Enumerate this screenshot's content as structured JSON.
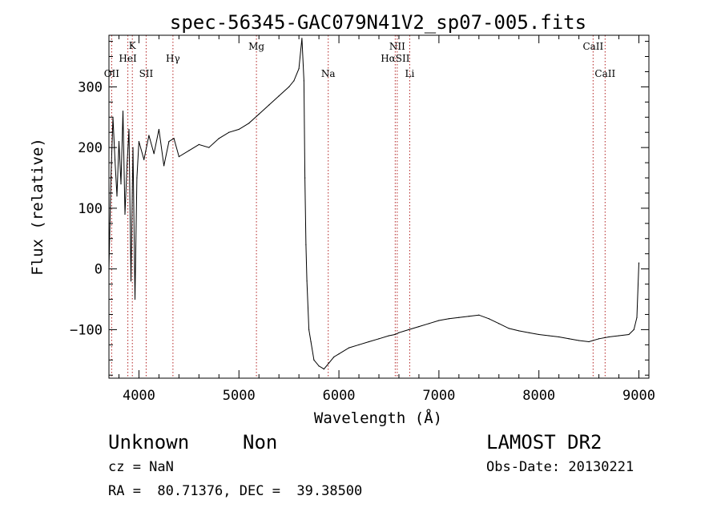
{
  "title": "spec-56345-GAC079N41V2_sp07-005.fits",
  "chart_data": {
    "type": "line",
    "xlabel": "Wavelength (Å)",
    "ylabel": "Flux (relative)",
    "xlim": [
      3700,
      9100
    ],
    "ylim": [
      -180,
      385
    ],
    "xticks": [
      4000,
      5000,
      6000,
      7000,
      8000,
      9000
    ],
    "yticks": [
      -100,
      0,
      100,
      200,
      300
    ],
    "series": [
      {
        "x": [
          3700,
          3720,
          3740,
          3760,
          3780,
          3800,
          3820,
          3840,
          3860,
          3880,
          3900,
          3920,
          3940,
          3960,
          3980,
          4000,
          4050,
          4100,
          4150,
          4200,
          4250,
          4300,
          4350,
          4400,
          4500,
          4600,
          4700,
          4800,
          4900,
          5000,
          5100,
          5200,
          5300,
          5400,
          5500,
          5550,
          5600,
          5630,
          5650,
          5660,
          5670,
          5680,
          5700,
          5720,
          5750,
          5800,
          5850,
          5900,
          5950,
          6000,
          6100,
          6200,
          6300,
          6400,
          6500,
          6560,
          6600,
          6700,
          6800,
          6900,
          7000,
          7100,
          7200,
          7300,
          7400,
          7500,
          7600,
          7700,
          7800,
          7900,
          8000,
          8100,
          8200,
          8300,
          8400,
          8500,
          8600,
          8700,
          8800,
          8900,
          8950,
          8980,
          9000
        ],
        "y": [
          0,
          150,
          250,
          180,
          120,
          210,
          140,
          260,
          90,
          170,
          230,
          -20,
          200,
          -50,
          150,
          210,
          180,
          220,
          190,
          230,
          170,
          210,
          215,
          185,
          195,
          205,
          200,
          215,
          225,
          230,
          240,
          255,
          270,
          285,
          300,
          310,
          330,
          380,
          310,
          150,
          40,
          -20,
          -100,
          -120,
          -150,
          -160,
          -165,
          -155,
          -145,
          -140,
          -130,
          -125,
          -120,
          -115,
          -110,
          -108,
          -105,
          -100,
          -95,
          -90,
          -85,
          -82,
          -80,
          -78,
          -76,
          -82,
          -90,
          -98,
          -102,
          -105,
          -108,
          -110,
          -112,
          -115,
          -118,
          -120,
          -115,
          -112,
          -110,
          -108,
          -100,
          -80,
          10
        ]
      }
    ],
    "line_labels": [
      {
        "text": "K",
        "x": 3934
      },
      {
        "text": "HeI",
        "x": 3889
      },
      {
        "text": "OII",
        "x": 3727
      },
      {
        "text": "SII",
        "x": 4072
      },
      {
        "text": "Hγ",
        "x": 4340
      },
      {
        "text": "Mg",
        "x": 5175
      },
      {
        "text": "Na",
        "x": 5893
      },
      {
        "text": "NII",
        "x": 6583
      },
      {
        "text": "HαSII",
        "x": 6563
      },
      {
        "text": "Li",
        "x": 6708
      },
      {
        "text": "CaII",
        "x": 8542
      },
      {
        "text": "CaII",
        "x": 8662
      }
    ]
  },
  "info": {
    "class": "Unknown",
    "subclass": "Non",
    "cz": "cz = NaN",
    "radec": "RA =  80.71376, DEC =  39.38500",
    "survey": "LAMOST DR2",
    "obs_date": "Obs-Date: 20130221"
  }
}
